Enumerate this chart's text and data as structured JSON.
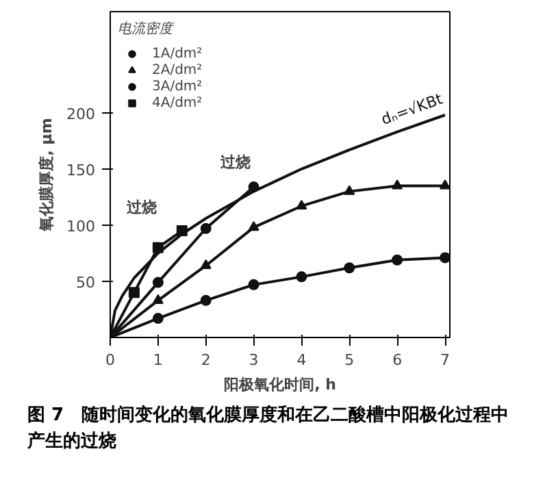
{
  "chart_data": {
    "type": "line",
    "xlabel": "阳极氧化时间, h",
    "ylabel": "氧化膜厚度, μm",
    "legend_title": "电流密度",
    "x": [
      0,
      1,
      2,
      3,
      4,
      5,
      6,
      7
    ],
    "series": [
      {
        "name": "1A/dm²",
        "color": "#111111",
        "marker": "circle",
        "values": [
          0,
          17,
          33,
          47,
          54,
          62,
          69,
          71
        ]
      },
      {
        "name": "2A/dm²",
        "color": "#111111",
        "marker": "triangle",
        "values": [
          0,
          33,
          64,
          98,
          117,
          130,
          135,
          135
        ]
      },
      {
        "name": "3A/dm²",
        "color": "#111111",
        "marker": "circle",
        "x": [
          0,
          1,
          2,
          3
        ],
        "values": [
          0,
          49,
          97,
          134
        ]
      },
      {
        "name": "4A/dm²",
        "color": "#111111",
        "marker": "square",
        "x": [
          0,
          0.5,
          1,
          1.5
        ],
        "values": [
          0,
          40,
          80,
          95
        ]
      },
      {
        "name": "dₙ=√KBt",
        "color": "#111111",
        "marker": "none",
        "x": [
          0,
          0.1,
          0.25,
          0.5,
          1,
          1.5,
          2,
          3,
          4,
          5,
          6,
          7
        ],
        "values": [
          0,
          24,
          37,
          53,
          75,
          92,
          106,
          130,
          150,
          167,
          183,
          198
        ]
      }
    ],
    "xlim": [
      0,
      7.1
    ],
    "ylim": [
      0,
      290
    ],
    "xticks": [
      0,
      1,
      2,
      3,
      4,
      5,
      6,
      7
    ],
    "yticks": [
      50,
      100,
      150,
      200
    ],
    "grid": false,
    "legend": "top left",
    "annotations": [
      "过烧",
      "过烧",
      "图 7　随时间变化的氧化膜厚度和在乙二酸槽中阳极化过程中产生的过烧"
    ]
  }
}
